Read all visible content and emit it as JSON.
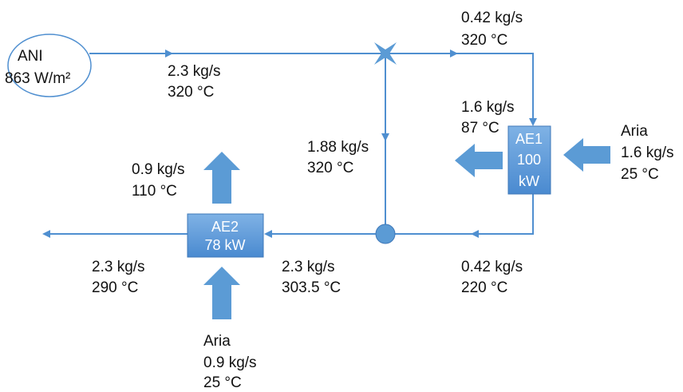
{
  "source": {
    "label": "ANI",
    "irradiance": "863 W/m²"
  },
  "exchangers": [
    {
      "name": "AE1",
      "power_lines": [
        "100",
        "kW"
      ]
    },
    {
      "name": "AE2",
      "power_lines": [
        "78 kW"
      ]
    }
  ],
  "streams": [
    {
      "flow": "2.3 kg/s",
      "temp": "320 °C"
    },
    {
      "flow": "0.42 kg/s",
      "temp": "320 °C"
    },
    {
      "flow": "1.6 kg/s",
      "temp": "87 °C"
    },
    {
      "flow": "1.88 kg/s",
      "temp": "320 °C"
    },
    {
      "flow": "0.9 kg/s",
      "temp": "110 °C"
    },
    {
      "flow": "2.3 kg/s",
      "temp": "290 °C"
    },
    {
      "flow": "2.3 kg/s",
      "temp": "303.5 °C"
    },
    {
      "flow": "0.42 kg/s",
      "temp": "220 °C"
    }
  ],
  "air_inlets": [
    {
      "label": "Aria",
      "flow": "1.6 kg/s",
      "temp": "25 °C"
    },
    {
      "label": "Aria",
      "flow": "0.9 kg/s",
      "temp": "25 °C"
    }
  ]
}
